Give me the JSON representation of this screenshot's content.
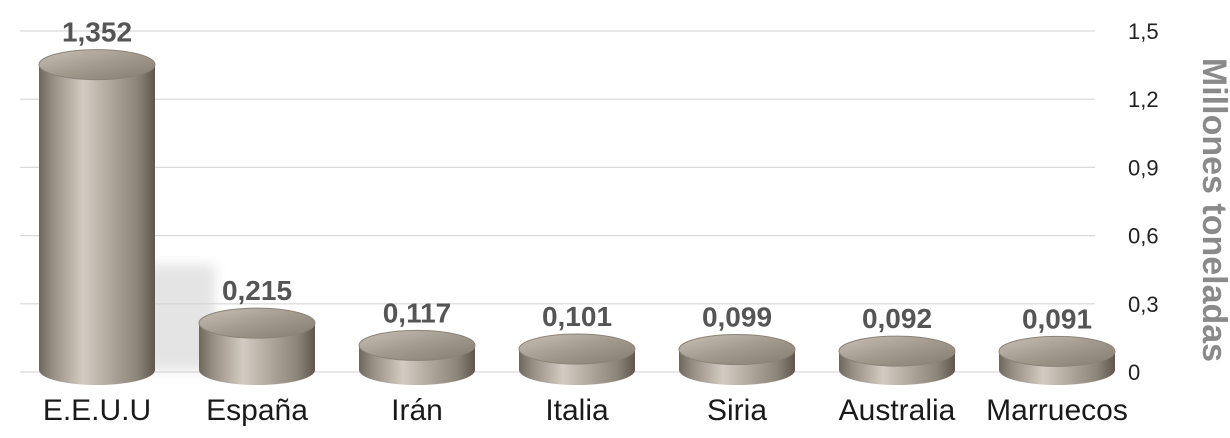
{
  "chart_data": {
    "type": "bar",
    "categories": [
      "E.E.U.U",
      "España",
      "Irán",
      "Italia",
      "Siria",
      "Australia",
      "Marruecos"
    ],
    "values": [
      1.352,
      0.215,
      0.117,
      0.101,
      0.099,
      0.092,
      0.091
    ],
    "value_labels": [
      "1,352",
      "0,215",
      "0,117",
      "0,101",
      "0,099",
      "0,092",
      "0,091"
    ],
    "yticks": [
      "0",
      "0,3",
      "0,6",
      "0,9",
      "1,2",
      "1,5"
    ],
    "ylabel": "Millones toneladas",
    "ylim": [
      0,
      1.5
    ],
    "grid": true,
    "axis_side": "right",
    "bar_color": "#a89f93"
  }
}
